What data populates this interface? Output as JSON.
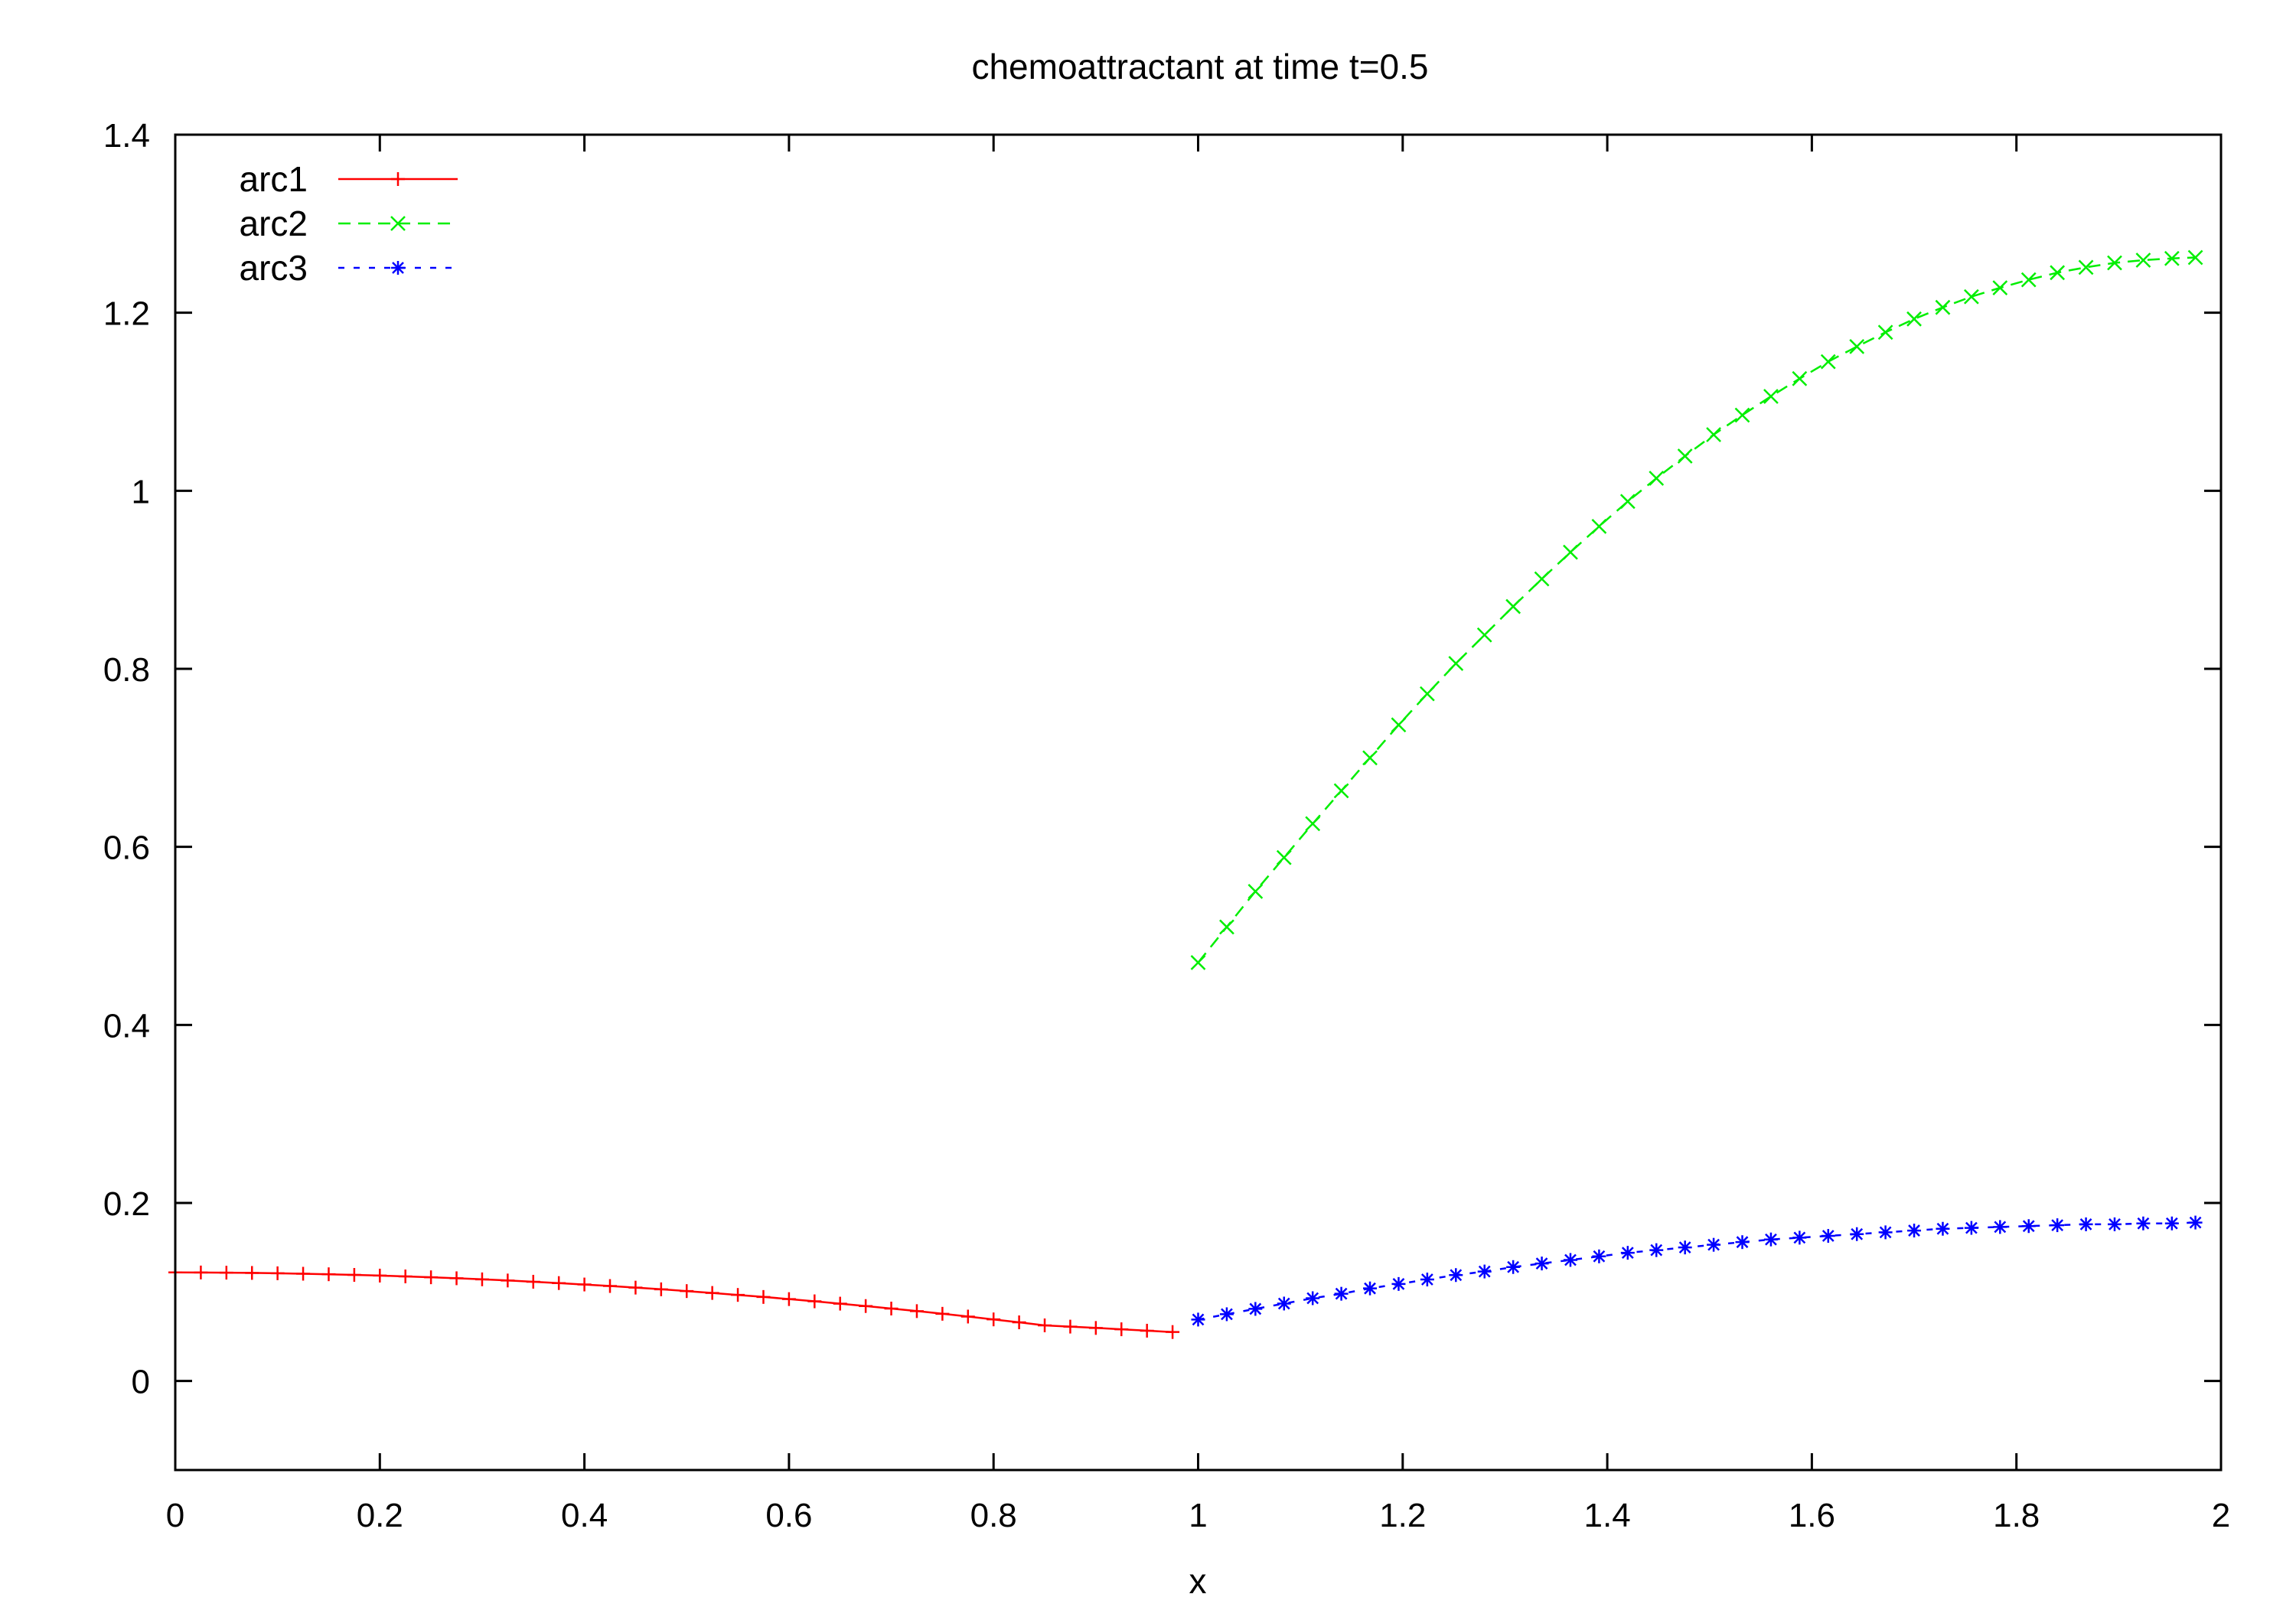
{
  "chart_data": {
    "type": "line",
    "title": "chemoattractant at time t=0.5",
    "xlabel": "x",
    "ylabel": "",
    "xlim": [
      0,
      2
    ],
    "ylim": [
      -0.1,
      1.4
    ],
    "xticks": [
      "0",
      "0.2",
      "0.4",
      "0.6",
      "0.8",
      "1",
      "1.2",
      "1.4",
      "1.6",
      "1.8",
      "2"
    ],
    "yticks": [
      "0",
      "0.2",
      "0.4",
      "0.6",
      "0.8",
      "1",
      "1.2",
      "1.4"
    ],
    "grid": false,
    "legend_position": "top-left",
    "series": [
      {
        "name": "arc1",
        "color": "#ff0000",
        "marker": "plus",
        "line_style": "solid",
        "x": [
          0.0,
          0.025,
          0.05,
          0.075,
          0.1,
          0.125,
          0.15,
          0.175,
          0.2,
          0.225,
          0.25,
          0.275,
          0.3,
          0.325,
          0.35,
          0.375,
          0.4,
          0.425,
          0.45,
          0.475,
          0.5,
          0.525,
          0.55,
          0.575,
          0.6,
          0.625,
          0.65,
          0.675,
          0.7,
          0.725,
          0.75,
          0.775,
          0.8,
          0.825,
          0.85,
          0.875,
          0.9,
          0.925,
          0.95,
          0.975
        ],
        "y": [
          0.122,
          0.1219,
          0.1217,
          0.1214,
          0.121,
          0.1205,
          0.1199,
          0.1192,
          0.1184,
          0.1175,
          0.1165,
          0.1154,
          0.1142,
          0.1129,
          0.1115,
          0.11,
          0.1084,
          0.1067,
          0.1049,
          0.103,
          0.101,
          0.0989,
          0.0967,
          0.0944,
          0.092,
          0.0895,
          0.0869,
          0.0842,
          0.0814,
          0.0785,
          0.0755,
          0.0724,
          0.0692,
          0.0659,
          0.0625,
          0.0611,
          0.0596,
          0.0581,
          0.0565,
          0.055
        ]
      },
      {
        "name": "arc2",
        "color": "#00ee00",
        "marker": "cross",
        "line_style": "dashed",
        "x": [
          1.0,
          1.028,
          1.056,
          1.084,
          1.112,
          1.14,
          1.168,
          1.196,
          1.224,
          1.252,
          1.28,
          1.308,
          1.336,
          1.364,
          1.392,
          1.42,
          1.448,
          1.476,
          1.504,
          1.532,
          1.56,
          1.588,
          1.616,
          1.644,
          1.672,
          1.7,
          1.728,
          1.756,
          1.784,
          1.812,
          1.84,
          1.868,
          1.896,
          1.924,
          1.952,
          1.975
        ],
        "y": [
          0.47,
          0.51,
          0.55,
          0.588,
          0.626,
          0.663,
          0.7,
          0.737,
          0.772,
          0.806,
          0.838,
          0.87,
          0.901,
          0.931,
          0.96,
          0.988,
          1.014,
          1.039,
          1.063,
          1.085,
          1.106,
          1.126,
          1.145,
          1.162,
          1.178,
          1.193,
          1.206,
          1.218,
          1.228,
          1.237,
          1.245,
          1.251,
          1.256,
          1.259,
          1.261,
          1.262
        ]
      },
      {
        "name": "arc3",
        "color": "#0000ff",
        "marker": "star",
        "line_style": "dotted",
        "x": [
          1.0,
          1.028,
          1.056,
          1.084,
          1.112,
          1.14,
          1.168,
          1.196,
          1.224,
          1.252,
          1.28,
          1.308,
          1.336,
          1.364,
          1.392,
          1.42,
          1.448,
          1.476,
          1.504,
          1.532,
          1.56,
          1.588,
          1.616,
          1.644,
          1.672,
          1.7,
          1.728,
          1.756,
          1.784,
          1.812,
          1.84,
          1.868,
          1.896,
          1.924,
          1.952,
          1.975
        ],
        "y": [
          0.069,
          0.075,
          0.081,
          0.087,
          0.093,
          0.098,
          0.104,
          0.109,
          0.114,
          0.119,
          0.123,
          0.128,
          0.132,
          0.136,
          0.14,
          0.144,
          0.147,
          0.15,
          0.153,
          0.156,
          0.159,
          0.161,
          0.163,
          0.165,
          0.167,
          0.169,
          0.171,
          0.172,
          0.173,
          0.174,
          0.175,
          0.176,
          0.176,
          0.177,
          0.177,
          0.178
        ]
      }
    ]
  }
}
